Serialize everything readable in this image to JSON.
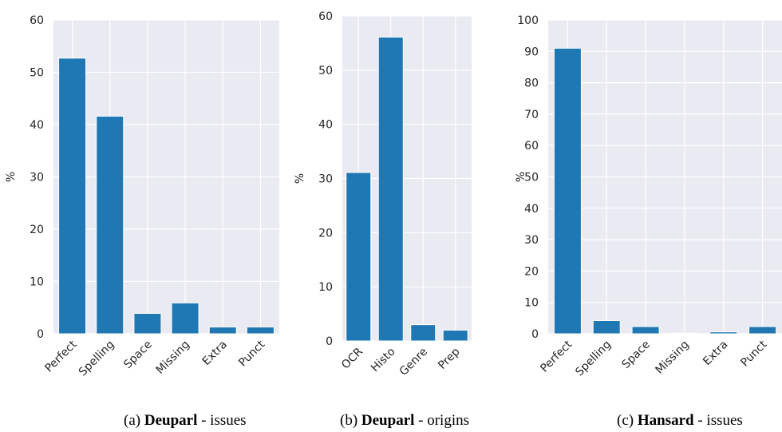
{
  "chart_data": [
    {
      "type": "bar",
      "caption": {
        "prefix": "(a) ",
        "bold": "Deuparl",
        "rest": " - issues"
      },
      "ylabel": "%",
      "ylim": [
        0,
        60
      ],
      "yticks": [
        0,
        10,
        20,
        30,
        40,
        50,
        60
      ],
      "categories": [
        "Perfect",
        "Spelling",
        "Space",
        "Missing",
        "Extra",
        "Punct"
      ],
      "values": [
        52.7,
        41.6,
        3.9,
        5.9,
        1.3,
        1.3
      ],
      "color": "#1f77b4",
      "grid": true
    },
    {
      "type": "bar",
      "caption": {
        "prefix": "(b) ",
        "bold": "Deuparl",
        "rest": " - origins"
      },
      "ylabel": "%",
      "ylim": [
        0,
        60
      ],
      "yticks": [
        0,
        10,
        20,
        30,
        40,
        50,
        60
      ],
      "categories": [
        "OCR",
        "Histo",
        "Genre",
        "Prep"
      ],
      "values": [
        31.1,
        56.1,
        3.0,
        2.0
      ],
      "color": "#1f77b4",
      "grid": true
    },
    {
      "type": "bar",
      "caption": {
        "prefix": "(c) ",
        "bold": "Hansard",
        "rest": " - issues"
      },
      "ylabel": "%",
      "ylim": [
        0,
        100
      ],
      "yticks": [
        0,
        10,
        20,
        30,
        40,
        50,
        60,
        70,
        80,
        90,
        100
      ],
      "categories": [
        "Perfect",
        "Spelling",
        "Space",
        "Missing",
        "Extra",
        "Punct"
      ],
      "values": [
        91.0,
        4.2,
        2.3,
        0.2,
        0.6,
        2.3
      ],
      "color": "#1f77b4",
      "grid": true
    }
  ]
}
